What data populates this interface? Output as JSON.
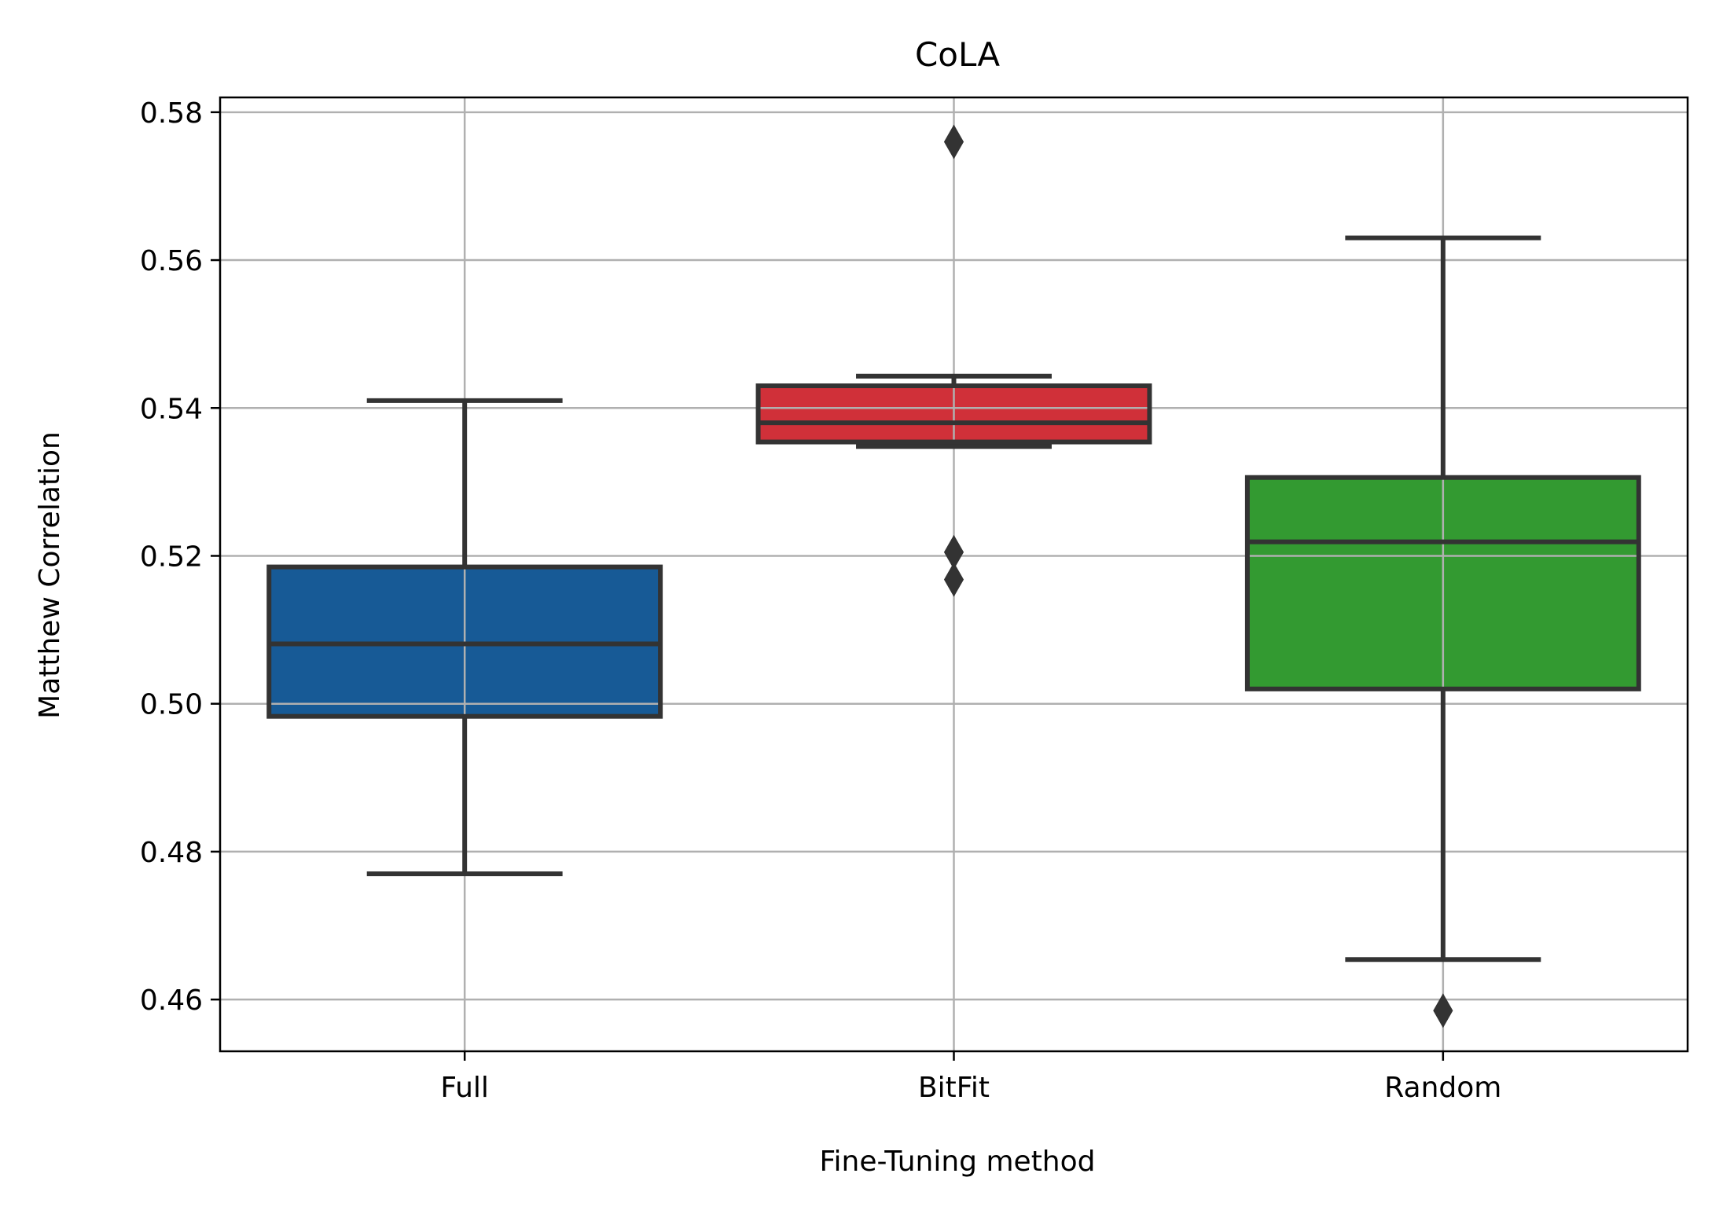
{
  "chart_data": {
    "type": "box",
    "title": "CoLA",
    "xlabel": "Fine-Tuning method",
    "ylabel": "Matthew Correlation",
    "ylim": [
      0.453,
      0.582
    ],
    "yticks": [
      0.46,
      0.48,
      0.5,
      0.52,
      0.54,
      0.56,
      0.58
    ],
    "ytick_labels": [
      "0.46",
      "0.48",
      "0.50",
      "0.52",
      "0.54",
      "0.56",
      "0.58"
    ],
    "grid": true,
    "categories": [
      "Full",
      "BitFit",
      "Random"
    ],
    "boxes": [
      {
        "category": "Full",
        "whisker_low": 0.477,
        "q1": 0.4983,
        "median": 0.5081,
        "q3": 0.5185,
        "whisker_high": 0.541,
        "outliers": [],
        "color": "#175a96"
      },
      {
        "category": "BitFit",
        "whisker_low": 0.5348,
        "q1": 0.5354,
        "median": 0.538,
        "q3": 0.543,
        "whisker_high": 0.5443,
        "outliers": [
          0.576,
          0.5205,
          0.5168
        ],
        "color": "#d03039"
      },
      {
        "category": "Random",
        "whisker_low": 0.4654,
        "q1": 0.502,
        "median": 0.5219,
        "q3": 0.5306,
        "whisker_high": 0.563,
        "outliers": [
          0.4585
        ],
        "color": "#339a31"
      }
    ]
  }
}
